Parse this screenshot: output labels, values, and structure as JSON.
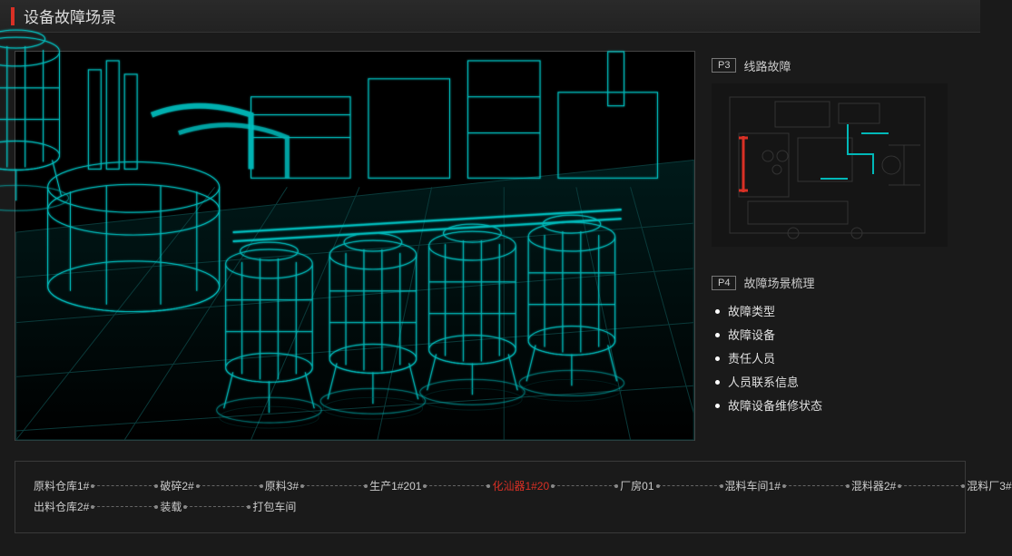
{
  "header": {
    "title": "设备故障场景"
  },
  "panels": {
    "p3": {
      "tag": "P3",
      "label": "线路故障"
    },
    "p4": {
      "tag": "P4",
      "label": "故障场景梳理"
    }
  },
  "info_items": [
    "故障类型",
    "故障设备",
    "责任人员",
    "人员联系信息",
    "故障设备维修状态"
  ],
  "flow": {
    "row1": [
      {
        "label": "原料仓库1#",
        "alert": false,
        "conn": 70
      },
      {
        "label": "破碎2#",
        "alert": false,
        "conn": 70
      },
      {
        "label": "原料3#",
        "alert": false,
        "conn": 70
      },
      {
        "label": "生产1#201",
        "alert": false,
        "conn": 70
      },
      {
        "label": "化汕器1#20",
        "alert": true,
        "conn": 70
      },
      {
        "label": "厂房01",
        "alert": false,
        "conn": 70
      },
      {
        "label": "混料车间1#",
        "alert": false,
        "conn": 70
      },
      {
        "label": "混料器2#",
        "alert": false,
        "conn": 70
      },
      {
        "label": "混料厂3#",
        "alert": false,
        "conn": 0
      }
    ],
    "row2": [
      {
        "label": "出料仓库2#",
        "alert": false,
        "conn": 70
      },
      {
        "label": "装载",
        "alert": false,
        "conn": 70
      },
      {
        "label": "打包车间",
        "alert": false,
        "conn": 0
      }
    ]
  },
  "style": {
    "accent": "#00e6e6",
    "alert": "#d93025",
    "wire_stroke": "#00d4d4",
    "wire_glow": "#00ffff",
    "grid": "#0a3a3a",
    "bg": "#1a1a1a",
    "panel_border": "#3a3a3a",
    "text": "#cccccc",
    "viewport_bg": "#000000"
  },
  "minimap": {
    "bg": "#151515",
    "building_stroke": "#333333",
    "pipe": "#00b8b8",
    "alert_pipe": "#d93025"
  }
}
